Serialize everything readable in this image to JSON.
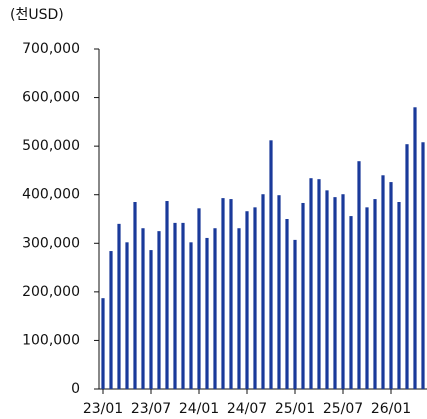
{
  "chart_data": {
    "type": "bar",
    "y_label": "(천USD)",
    "categories": [
      "23/01",
      null,
      null,
      null,
      null,
      null,
      "23/07",
      null,
      null,
      null,
      null,
      null,
      "24/01",
      null,
      null,
      null,
      null,
      null,
      "24/07",
      null,
      null,
      null,
      null,
      null,
      "25/01",
      null,
      null,
      null,
      null,
      null,
      "25/07",
      null,
      null,
      null,
      null,
      null,
      "26/01",
      null,
      null,
      null,
      null
    ],
    "values": [
      187000,
      284000,
      340000,
      302000,
      385000,
      331000,
      286000,
      325000,
      387000,
      342000,
      342000,
      302000,
      372000,
      311000,
      331000,
      393000,
      391000,
      331000,
      366000,
      374000,
      401000,
      512000,
      399000,
      350000,
      307000,
      383000,
      434000,
      432000,
      409000,
      395000,
      401000,
      356000,
      469000,
      374000,
      391000,
      440000,
      426000,
      385000,
      504000,
      580000,
      508000
    ],
    "color": "#1a3a9a",
    "ylim": [
      0,
      700000
    ],
    "yticks": [
      0,
      {
        "value": 100000,
        "label": "100,000"
      },
      {
        "value": 200000,
        "label": "200,000"
      },
      {
        "value": 300000,
        "label": "300,000"
      },
      {
        "value": 400000,
        "label": "400,000"
      },
      {
        "value": 500000,
        "label": "500,000"
      },
      {
        "value": 600000,
        "label": "600,000"
      },
      {
        "value": 700000,
        "label": "700,000"
      }
    ],
    "grid": false
  }
}
